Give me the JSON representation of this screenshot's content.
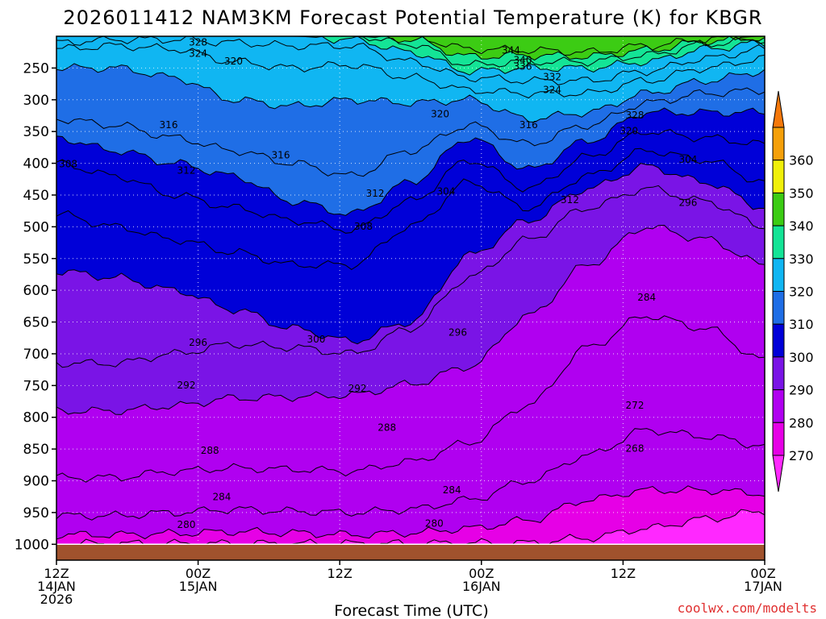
{
  "chart_data": {
    "type": "contour",
    "title": "2026011412 NAM3KM Forecast Potential Temperature (K) for KBGR",
    "xlabel": "Forecast Time (UTC)",
    "credit": "coolwx.com/modelts",
    "y_ticks": [
      250,
      300,
      350,
      400,
      450,
      500,
      550,
      600,
      650,
      700,
      750,
      800,
      850,
      900,
      950,
      1000
    ],
    "ylim": [
      200,
      1025
    ],
    "x_ticks": [
      {
        "hour": 0,
        "l1": "12Z",
        "l2": "14JAN",
        "l3": "2026"
      },
      {
        "hour": 12,
        "l1": "00Z",
        "l2": "15JAN",
        "l3": ""
      },
      {
        "hour": 24,
        "l1": "12Z",
        "l2": "",
        "l3": ""
      },
      {
        "hour": 36,
        "l1": "00Z",
        "l2": "16JAN",
        "l3": ""
      },
      {
        "hour": 48,
        "l1": "12Z",
        "l2": "",
        "l3": ""
      },
      {
        "hour": 60,
        "l1": "00Z",
        "l2": "17JAN",
        "l3": ""
      }
    ],
    "xlim": [
      0,
      60
    ],
    "colorbar": {
      "levels": [
        270,
        280,
        290,
        300,
        310,
        320,
        330,
        340,
        350,
        360
      ],
      "colors": [
        "#e600e6",
        "#b000f0",
        "#7a14e6",
        "#0000d8",
        "#1f6ee6",
        "#10b6f2",
        "#14e496",
        "#3ccc14",
        "#f0f00a",
        "#f5a00a"
      ],
      "low_color": "#ff28ff",
      "high_color": "#f5780a"
    },
    "ground_color": "#a0522d",
    "isentropes": [
      {
        "theta": 270,
        "p": [
          999,
          999,
          999,
          999,
          999,
          999,
          999,
          998,
          998,
          990,
          975,
          960,
          948
        ]
      },
      {
        "theta": 280,
        "p": [
          985,
          985,
          983,
          980,
          982,
          985,
          982,
          975,
          962,
          930,
          915,
          915,
          920
        ]
      },
      {
        "theta": 284,
        "p": [
          955,
          955,
          950,
          945,
          948,
          950,
          945,
          930,
          900,
          860,
          820,
          830,
          845
        ]
      },
      {
        "theta": 288,
        "p": [
          895,
          895,
          885,
          880,
          882,
          885,
          870,
          840,
          780,
          690,
          640,
          660,
          710
        ]
      },
      {
        "theta": 292,
        "p": [
          790,
          790,
          782,
          770,
          768,
          765,
          748,
          720,
          640,
          560,
          500,
          520,
          560
        ]
      },
      {
        "theta": 296,
        "p": [
          715,
          715,
          700,
          685,
          690,
          700,
          660,
          580,
          520,
          470,
          440,
          460,
          500
        ]
      },
      {
        "theta": 300,
        "p": [
          570,
          580,
          600,
          630,
          660,
          680,
          650,
          545,
          490,
          440,
          405,
          430,
          470
        ]
      },
      {
        "theta": 304,
        "p": [
          480,
          500,
          520,
          540,
          560,
          560,
          500,
          430,
          470,
          420,
          380,
          395,
          430
        ]
      },
      {
        "theta": 308,
        "p": [
          400,
          420,
          450,
          470,
          490,
          505,
          460,
          395,
          440,
          390,
          350,
          360,
          370
        ]
      },
      {
        "theta": 312,
        "p": [
          360,
          380,
          400,
          420,
          460,
          480,
          430,
          360,
          410,
          365,
          320,
          320,
          320
        ]
      },
      {
        "theta": 316,
        "p": [
          330,
          340,
          360,
          380,
          400,
          420,
          380,
          340,
          370,
          340,
          305,
          290,
          285
        ]
      },
      {
        "theta": 320,
        "p": [
          250,
          250,
          265,
          300,
          310,
          300,
          305,
          300,
          330,
          320,
          290,
          270,
          255
        ]
      },
      {
        "theta": 324,
        "p": [
          220,
          215,
          220,
          240,
          250,
          245,
          265,
          285,
          290,
          290,
          270,
          250,
          235
        ]
      },
      {
        "theta": 328,
        "p": [
          210,
          205,
          205,
          210,
          215,
          215,
          240,
          265,
          270,
          270,
          255,
          235,
          220
        ]
      },
      {
        "theta": 332,
        "p": [
          200,
          200,
          200,
          200,
          200,
          205,
          225,
          255,
          250,
          250,
          240,
          220,
          210
        ]
      },
      {
        "theta": 336,
        "p": [
          200,
          200,
          200,
          200,
          200,
          200,
          212,
          245,
          240,
          240,
          230,
          212,
          205
        ]
      },
      {
        "theta": 340,
        "p": [
          200,
          200,
          200,
          200,
          200,
          200,
          205,
          232,
          230,
          232,
          222,
          208,
          202
        ]
      },
      {
        "theta": 344,
        "p": [
          200,
          200,
          200,
          200,
          200,
          200,
          200,
          220,
          222,
          225,
          215,
          205,
          200
        ]
      }
    ],
    "contour_labels": [
      {
        "text": "328",
        "hour": 12.0,
        "p": 210
      },
      {
        "text": "324",
        "hour": 12.0,
        "p": 228
      },
      {
        "text": "320",
        "hour": 15.0,
        "p": 240
      },
      {
        "text": "316",
        "hour": 9.5,
        "p": 340
      },
      {
        "text": "308",
        "hour": 1.0,
        "p": 402
      },
      {
        "text": "312",
        "hour": 11.0,
        "p": 412
      },
      {
        "text": "316",
        "hour": 19.0,
        "p": 388
      },
      {
        "text": "312",
        "hour": 27.0,
        "p": 448
      },
      {
        "text": "308",
        "hour": 26.0,
        "p": 500
      },
      {
        "text": "304",
        "hour": 33.0,
        "p": 445
      },
      {
        "text": "320",
        "hour": 32.5,
        "p": 323
      },
      {
        "text": "316",
        "hour": 40.0,
        "p": 340
      },
      {
        "text": "312",
        "hour": 43.5,
        "p": 458
      },
      {
        "text": "344",
        "hour": 38.5,
        "p": 223
      },
      {
        "text": "340",
        "hour": 39.5,
        "p": 238
      },
      {
        "text": "336",
        "hour": 39.5,
        "p": 248
      },
      {
        "text": "332",
        "hour": 42.0,
        "p": 265
      },
      {
        "text": "324",
        "hour": 42.0,
        "p": 285
      },
      {
        "text": "328",
        "hour": 49.0,
        "p": 325
      },
      {
        "text": "320",
        "hour": 48.5,
        "p": 350
      },
      {
        "text": "304",
        "hour": 53.5,
        "p": 395
      },
      {
        "text": "296",
        "hour": 53.5,
        "p": 463
      },
      {
        "text": "284",
        "hour": 50.0,
        "p": 612
      },
      {
        "text": "272",
        "hour": 49.0,
        "p": 782
      },
      {
        "text": "268",
        "hour": 49.0,
        "p": 850
      },
      {
        "text": "296",
        "hour": 12.0,
        "p": 683
      },
      {
        "text": "300",
        "hour": 22.0,
        "p": 678
      },
      {
        "text": "292",
        "hour": 11.0,
        "p": 750
      },
      {
        "text": "292",
        "hour": 25.5,
        "p": 755
      },
      {
        "text": "296",
        "hour": 34.0,
        "p": 667
      },
      {
        "text": "288",
        "hour": 13.0,
        "p": 853
      },
      {
        "text": "288",
        "hour": 28.0,
        "p": 817
      },
      {
        "text": "284",
        "hour": 14.0,
        "p": 926
      },
      {
        "text": "284",
        "hour": 33.5,
        "p": 915
      },
      {
        "text": "280",
        "hour": 11.0,
        "p": 970
      },
      {
        "text": "280",
        "hour": 32.0,
        "p": 968
      }
    ]
  }
}
